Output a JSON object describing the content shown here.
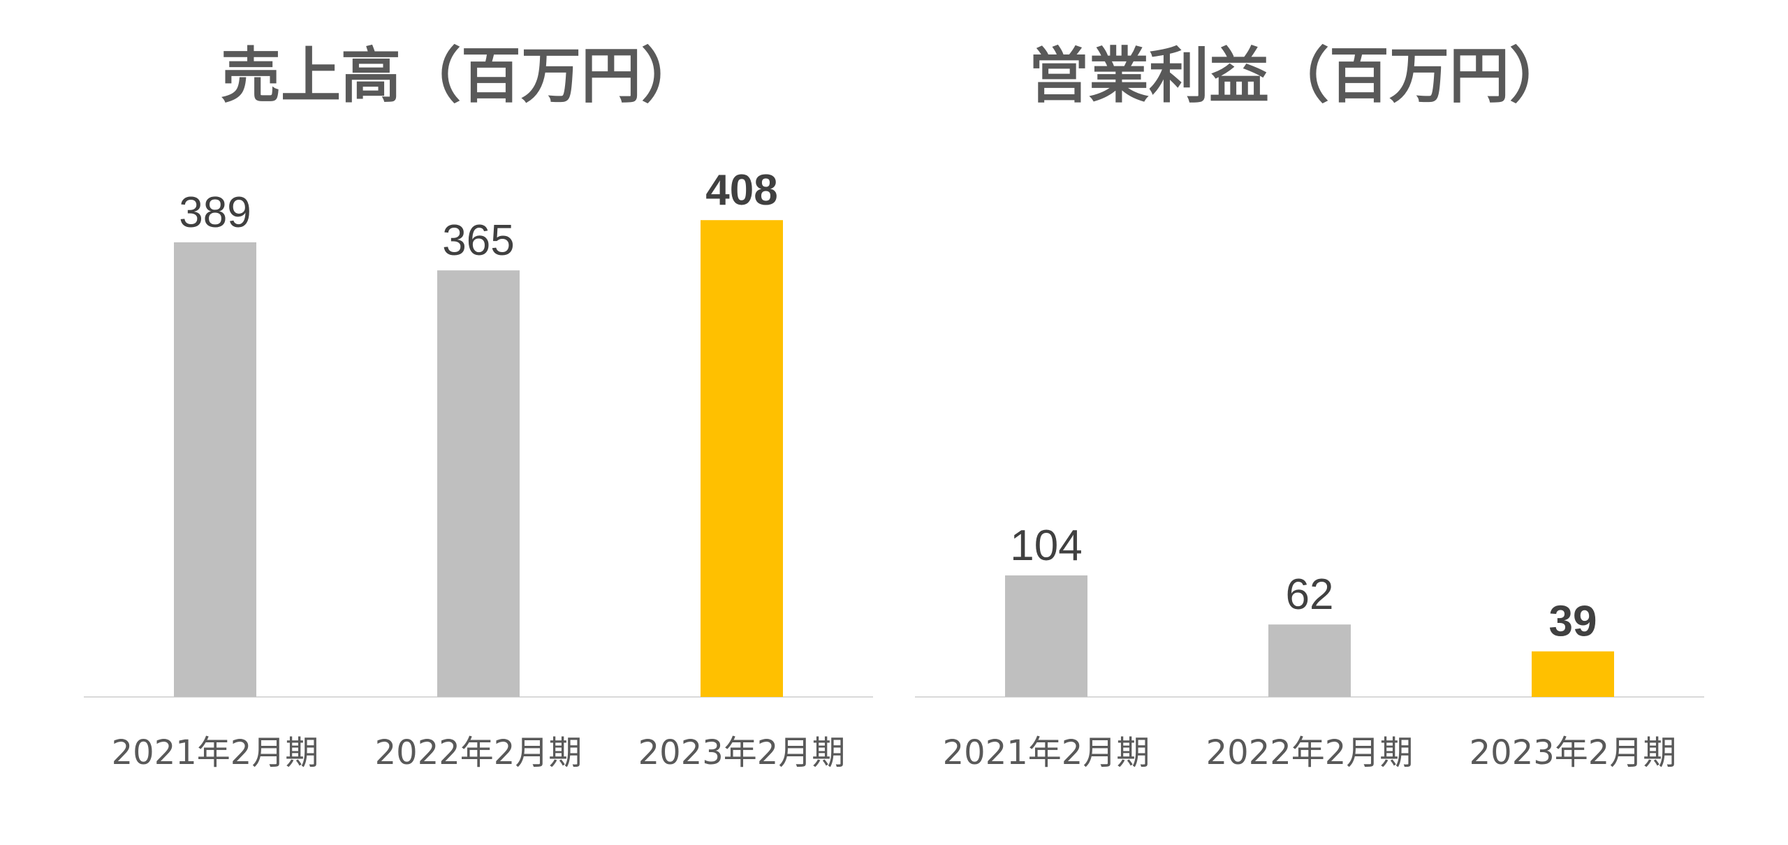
{
  "colors": {
    "default_bar": "#bfbfbf",
    "highlight_bar": "#ffc000",
    "axis": "#d9d9d9",
    "text": "#595959",
    "label": "#404040"
  },
  "chart_data": [
    {
      "type": "bar",
      "title": "売上高（百万円）",
      "categories": [
        "2021年2月期",
        "2022年2月期",
        "2023年2月期"
      ],
      "values": [
        389,
        365,
        408
      ],
      "highlight_index": 2,
      "xlabel": "",
      "ylabel": "",
      "ylim": [
        0,
        408
      ],
      "grid": false,
      "legend": "none"
    },
    {
      "type": "bar",
      "title": "営業利益（百万円）",
      "categories": [
        "2021年2月期",
        "2022年2月期",
        "2023年2月期"
      ],
      "values": [
        104,
        62,
        39
      ],
      "highlight_index": 2,
      "xlabel": "",
      "ylabel": "",
      "ylim": [
        0,
        408
      ],
      "grid": false,
      "legend": "none"
    }
  ]
}
